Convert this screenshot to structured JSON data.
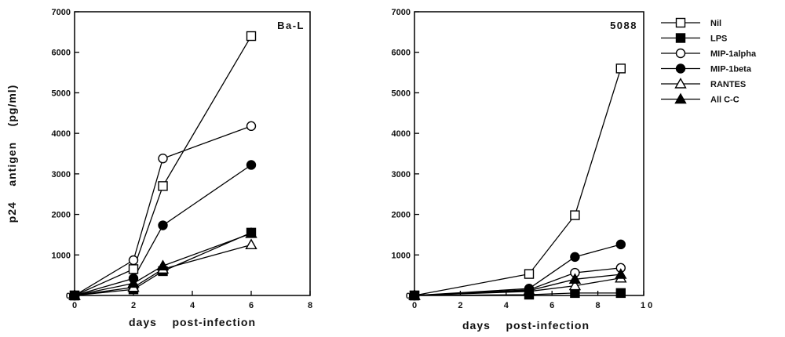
{
  "chart_data": [
    {
      "type": "line",
      "panel_label": "Ba-L",
      "xlabel": "days    post-infection",
      "ylabel": "p24    antigen    (pg/ml)",
      "xlim": [
        0,
        8
      ],
      "ylim": [
        0,
        7000
      ],
      "xticks": [
        "0",
        "2",
        "4",
        "6",
        "8"
      ],
      "yticks": [
        "0",
        "1000",
        "2000",
        "3000",
        "4000",
        "5000",
        "6000",
        "7000"
      ],
      "grid": false,
      "series": [
        {
          "name": "Nil",
          "marker": "square-open",
          "points": [
            [
              0,
              0
            ],
            [
              2,
              650
            ],
            [
              3,
              2700
            ],
            [
              6,
              6400
            ]
          ]
        },
        {
          "name": "LPS",
          "marker": "square-filled",
          "points": [
            [
              0,
              0
            ],
            [
              2,
              150
            ],
            [
              3,
              600
            ],
            [
              6,
              1550
            ]
          ]
        },
        {
          "name": "MIP-1alpha",
          "marker": "circle-open",
          "points": [
            [
              0,
              0
            ],
            [
              2,
              870
            ],
            [
              3,
              3380
            ],
            [
              6,
              4180
            ]
          ]
        },
        {
          "name": "MIP-1beta",
          "marker": "circle-filled",
          "points": [
            [
              0,
              0
            ],
            [
              2,
              420
            ],
            [
              3,
              1730
            ],
            [
              6,
              3220
            ]
          ]
        },
        {
          "name": "RANTES",
          "marker": "triangle-open",
          "points": [
            [
              0,
              0
            ],
            [
              2,
              200
            ],
            [
              3,
              650
            ],
            [
              6,
              1250
            ]
          ]
        },
        {
          "name": "All C-C",
          "marker": "triangle-filled",
          "points": [
            [
              0,
              0
            ],
            [
              2,
              300
            ],
            [
              3,
              730
            ],
            [
              6,
              1530
            ]
          ]
        }
      ]
    },
    {
      "type": "line",
      "panel_label": "5088",
      "xlabel": "days    post-infection",
      "ylabel": "",
      "xlim": [
        0,
        10
      ],
      "ylim": [
        0,
        7000
      ],
      "xticks": [
        "0",
        "2",
        "4",
        "6",
        "8",
        "1 0"
      ],
      "yticks": [
        "0",
        "1000",
        "2000",
        "3000",
        "4000",
        "5000",
        "6000",
        "7000"
      ],
      "grid": false,
      "series": [
        {
          "name": "Nil",
          "marker": "square-open",
          "points": [
            [
              0,
              0
            ],
            [
              5,
              530
            ],
            [
              7,
              1980
            ],
            [
              9,
              5600
            ]
          ]
        },
        {
          "name": "LPS",
          "marker": "square-filled",
          "points": [
            [
              0,
              0
            ],
            [
              5,
              20
            ],
            [
              7,
              60
            ],
            [
              9,
              60
            ]
          ]
        },
        {
          "name": "MIP-1alpha",
          "marker": "circle-open",
          "points": [
            [
              0,
              0
            ],
            [
              5,
              140
            ],
            [
              7,
              560
            ],
            [
              9,
              680
            ]
          ]
        },
        {
          "name": "MIP-1beta",
          "marker": "circle-filled",
          "points": [
            [
              0,
              0
            ],
            [
              5,
              170
            ],
            [
              7,
              950
            ],
            [
              9,
              1260
            ]
          ]
        },
        {
          "name": "RANTES",
          "marker": "triangle-open",
          "points": [
            [
              0,
              0
            ],
            [
              5,
              100
            ],
            [
              7,
              240
            ],
            [
              9,
              430
            ]
          ]
        },
        {
          "name": "All C-C",
          "marker": "triangle-filled",
          "points": [
            [
              0,
              0
            ],
            [
              5,
              120
            ],
            [
              7,
              400
            ],
            [
              9,
              520
            ]
          ]
        }
      ]
    }
  ],
  "legend": {
    "placement": "right",
    "entries": [
      {
        "label": "Nil",
        "marker": "square-open"
      },
      {
        "label": "LPS",
        "marker": "square-filled"
      },
      {
        "label": "MIP-1alpha",
        "marker": "circle-open"
      },
      {
        "label": "MIP-1beta",
        "marker": "circle-filled"
      },
      {
        "label": "RANTES",
        "marker": "triangle-open"
      },
      {
        "label": "All C-C",
        "marker": "triangle-filled"
      }
    ]
  }
}
